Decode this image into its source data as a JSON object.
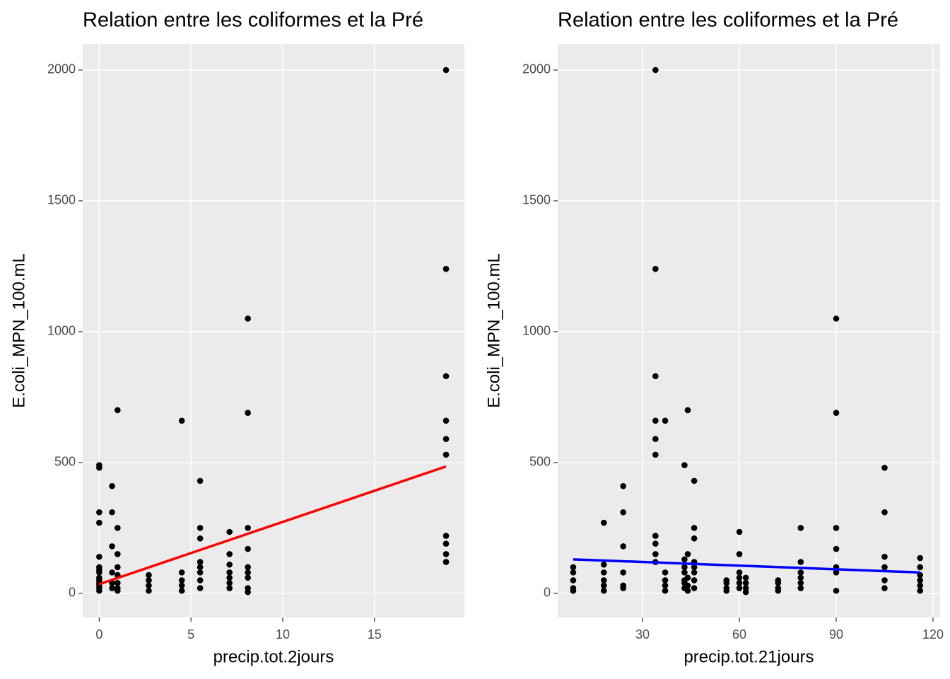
{
  "chart_data": [
    {
      "type": "scatter",
      "title": "Relation entre les coliformes et la Pré",
      "x_label": "precip.tot.2jours",
      "y_label": "E.coli_MPN_100.mL",
      "xlim": [
        -0.9,
        19.9
      ],
      "ylim": [
        -92,
        2100
      ],
      "xticks": [
        0,
        5,
        10,
        15
      ],
      "yticks": [
        0,
        500,
        1000,
        1500,
        2000
      ],
      "grid": true,
      "points": {
        "color": "#000000",
        "x": [
          0,
          0,
          0,
          0,
          0,
          0,
          0,
          0,
          0,
          0,
          0,
          0,
          0,
          0,
          0.7,
          0.7,
          0.7,
          0.7,
          0.7,
          0.7,
          1,
          1,
          1,
          1,
          1,
          1,
          1,
          1,
          2.7,
          2.7,
          2.7,
          2.7,
          4.5,
          4.5,
          4.5,
          4.5,
          4.5,
          5.5,
          5.5,
          5.5,
          5.5,
          5.5,
          5.5,
          5.5,
          5.5,
          7.1,
          7.1,
          7.1,
          7.1,
          7.1,
          7.1,
          7.1,
          8.1,
          8.1,
          8.1,
          8.1,
          8.1,
          8.1,
          8.1,
          8.1,
          8.1,
          18.9,
          18.9,
          18.9,
          18.9,
          18.9,
          18.9,
          18.9,
          18.9,
          18.9,
          18.9
        ],
        "values": [
          490,
          480,
          310,
          270,
          140,
          100,
          90,
          80,
          60,
          50,
          40,
          30,
          20,
          10,
          410,
          310,
          180,
          80,
          40,
          20,
          700,
          250,
          150,
          100,
          70,
          40,
          20,
          10,
          70,
          50,
          30,
          10,
          660,
          80,
          50,
          30,
          10,
          430,
          250,
          210,
          120,
          100,
          80,
          50,
          20,
          235,
          150,
          110,
          80,
          60,
          40,
          20,
          1050,
          690,
          250,
          170,
          100,
          80,
          60,
          20,
          5,
          2000,
          1240,
          830,
          660,
          590,
          530,
          220,
          190,
          150,
          120
        ]
      },
      "fit": {
        "color": "#ff0000",
        "x": [
          0,
          18.9
        ],
        "values": [
          35,
          485
        ]
      }
    },
    {
      "type": "scatter",
      "title": "Relation entre les coliformes et la Pré",
      "x_label": "precip.tot.21jours",
      "y_label": "E.coli_MPN_100.mL",
      "xlim": [
        3.7,
        122.2
      ],
      "ylim": [
        -92,
        2100
      ],
      "xticks": [
        30,
        60,
        90,
        120
      ],
      "yticks": [
        0,
        500,
        1000,
        1500,
        2000
      ],
      "grid": true,
      "points": {
        "color": "#000000",
        "x": [
          8.5,
          8.5,
          8.5,
          8.5,
          8.5,
          18,
          18,
          18,
          18,
          18,
          18,
          24,
          24,
          24,
          24,
          24,
          24,
          34,
          34,
          34,
          34,
          34,
          34,
          34,
          34,
          34,
          34,
          37,
          37,
          37,
          37,
          37,
          43,
          43,
          43,
          43,
          43,
          43,
          43,
          44,
          44,
          44,
          44,
          44,
          46,
          46,
          46,
          46,
          46,
          46,
          46,
          46,
          56,
          56,
          56,
          56,
          60,
          60,
          60,
          60,
          60,
          60,
          62,
          62,
          62,
          62,
          72,
          72,
          72,
          72,
          79,
          79,
          79,
          79,
          79,
          79,
          90,
          90,
          90,
          90,
          90,
          90,
          90,
          105,
          105,
          105,
          105,
          105,
          105,
          116,
          116,
          116,
          116,
          116,
          116
        ],
        "values": [
          100,
          80,
          50,
          20,
          10,
          270,
          110,
          80,
          50,
          30,
          10,
          410,
          310,
          180,
          80,
          30,
          20,
          2000,
          1240,
          830,
          660,
          590,
          530,
          220,
          190,
          150,
          120,
          660,
          80,
          50,
          30,
          10,
          490,
          130,
          100,
          80,
          50,
          40,
          20,
          700,
          150,
          60,
          30,
          10,
          430,
          250,
          210,
          120,
          100,
          80,
          50,
          20,
          50,
          40,
          20,
          10,
          235,
          150,
          80,
          60,
          40,
          20,
          60,
          40,
          20,
          5,
          50,
          40,
          20,
          10,
          250,
          120,
          80,
          60,
          40,
          20,
          1050,
          690,
          250,
          170,
          100,
          80,
          10,
          480,
          310,
          140,
          100,
          50,
          20,
          135,
          100,
          70,
          50,
          30,
          10
        ]
      },
      "fit": {
        "color": "#0000ff",
        "x": [
          8.5,
          116
        ],
        "values": [
          130,
          80
        ]
      }
    }
  ]
}
